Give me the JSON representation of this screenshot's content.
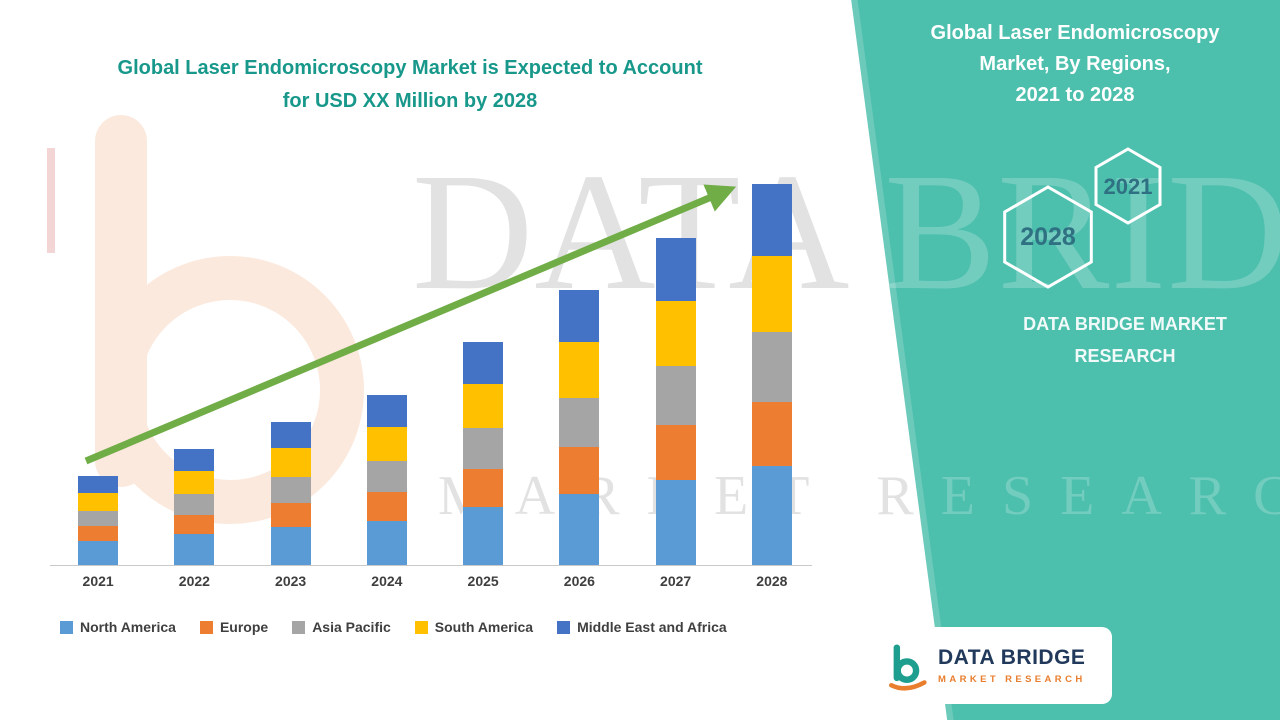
{
  "page": {
    "left_title_line1": "Global Laser Endomicroscopy Market is Expected to Account",
    "left_title_line2": "for USD XX Million by 2028"
  },
  "right_panel": {
    "title_line1": "Global Laser Endomicroscopy",
    "title_line2": "Market, By Regions,",
    "title_line3": "2021 to 2028",
    "hex_large_year": "2028",
    "hex_small_year": "2021",
    "brand_line1": "DATA BRIDGE MARKET",
    "brand_line2": "RESEARCH"
  },
  "logo_box": {
    "brand": "DATA BRIDGE",
    "tagline": "MARKET RESEARCH"
  },
  "watermark": {
    "line1": "DATA BRIDGE",
    "line2": "MARKET RESEARCH"
  },
  "colors": {
    "teal_panel": "#4CBFAD",
    "title_teal": "#18988B",
    "hex_year_text": "#2F7182",
    "arrow_green": "#70AD47",
    "axis_label": "#3F3F3F",
    "logo_navy": "#21395B",
    "logo_orange": "#E87E2E"
  },
  "chart_data": {
    "type": "bar",
    "stacked": true,
    "title": "Global Laser Endomicroscopy Market is Expected to Account for USD XX Million by 2028",
    "categories": [
      "2021",
      "2022",
      "2023",
      "2024",
      "2025",
      "2026",
      "2027",
      "2028"
    ],
    "series": [
      {
        "name": "North America",
        "color": "#5B9BD5",
        "values": [
          24,
          31,
          38,
          45,
          59,
          72,
          86,
          100
        ]
      },
      {
        "name": "Europe",
        "color": "#ED7D31",
        "values": [
          15,
          20,
          25,
          29,
          38,
          47,
          56,
          65
        ]
      },
      {
        "name": "Asia Pacific",
        "color": "#A5A5A5",
        "values": [
          16,
          21,
          26,
          31,
          41,
          50,
          59,
          70
        ]
      },
      {
        "name": "South America",
        "color": "#FFC000",
        "values": [
          18,
          23,
          29,
          34,
          45,
          56,
          66,
          77
        ]
      },
      {
        "name": "Middle East and Africa",
        "color": "#4472C4",
        "values": [
          17,
          22,
          27,
          33,
          42,
          53,
          63,
          73
        ]
      }
    ],
    "ylim": [
      0,
      400
    ],
    "values_are_estimates": true,
    "legend_position": "bottom",
    "grid": false,
    "trend_arrow": true
  }
}
